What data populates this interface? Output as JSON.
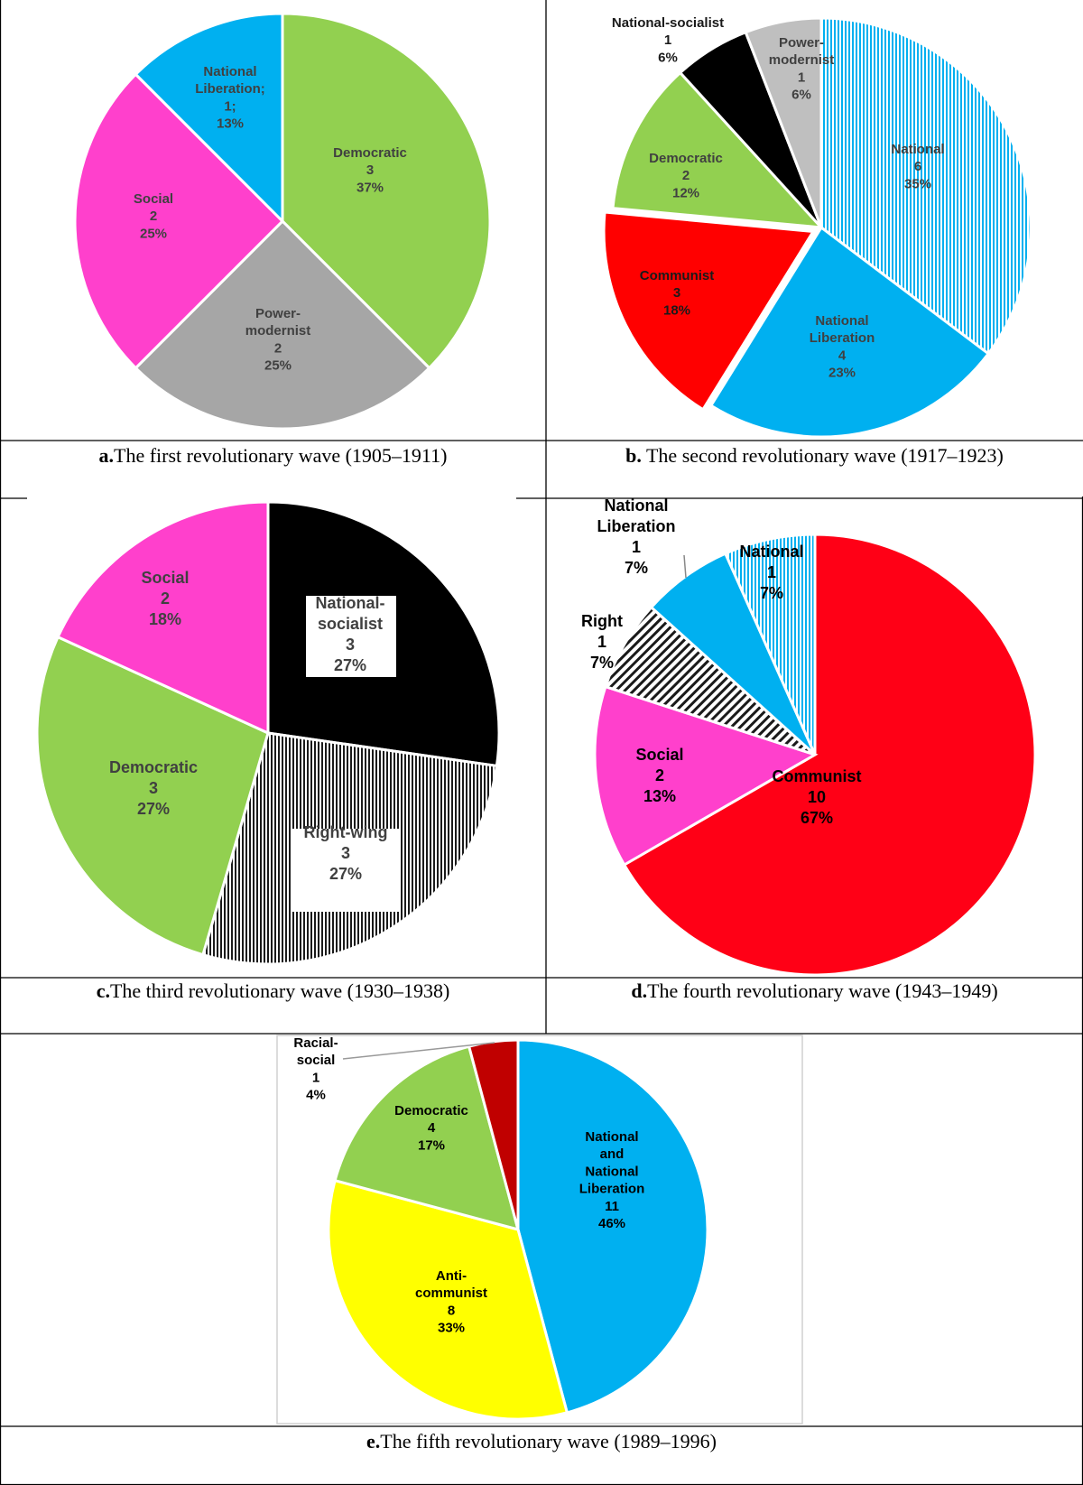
{
  "charts": [
    {
      "type": "pie",
      "caption_letter": "a.",
      "caption_text": "The first revolutionary wave (1905–1911)",
      "slices": [
        {
          "name": "Democratic",
          "value": 3,
          "percent": "37%",
          "color": "#92d050",
          "label": [
            "Democratic",
            "3",
            "37%"
          ]
        },
        {
          "name": "Power-modernist",
          "value": 2,
          "percent": "25%",
          "color": "#a6a6a6",
          "label": [
            "Power-",
            "modernist",
            "2",
            "25%"
          ]
        },
        {
          "name": "Social",
          "value": 2,
          "percent": "25%",
          "color": "#ff40cc",
          "label": [
            "Social",
            "2",
            "25%"
          ]
        },
        {
          "name": "National Liberation",
          "value": 1,
          "percent": "13%",
          "color": "#00b0f0",
          "label": [
            "National",
            "Liberation;",
            "1;",
            "13%"
          ]
        }
      ]
    },
    {
      "type": "pie",
      "caption_letter": "b.",
      "caption_text": "The second revolutionary wave (1917–1923)",
      "slices": [
        {
          "name": "National",
          "value": 6,
          "percent": "35%",
          "color": "#00b0f0",
          "pattern": "vlines",
          "label": [
            "National",
            "6",
            "35%"
          ]
        },
        {
          "name": "National Liberation",
          "value": 4,
          "percent": "23%",
          "color": "#00b0f0",
          "label": [
            "National",
            "Liberation",
            "4",
            "23%"
          ]
        },
        {
          "name": "Communist",
          "value": 3,
          "percent": "18%",
          "color": "#ff0000",
          "label": [
            "Communist",
            "3",
            "18%"
          ]
        },
        {
          "name": "Democratic",
          "value": 2,
          "percent": "12%",
          "color": "#92d050",
          "label": [
            "Democratic",
            "2",
            "12%"
          ]
        },
        {
          "name": "National-socialist",
          "value": 1,
          "percent": "6%",
          "color": "#000000",
          "label": [
            "National-socialist",
            "1",
            "6%"
          ]
        },
        {
          "name": "Power-modernist",
          "value": 1,
          "percent": "6%",
          "color": "#bfbfbf",
          "label": [
            "Power-",
            "modernist",
            "1",
            "6%"
          ]
        }
      ]
    },
    {
      "type": "pie",
      "caption_letter": "c.",
      "caption_text": "The third revolutionary wave (1930–1938)",
      "slices": [
        {
          "name": "National-socialist",
          "value": 3,
          "percent": "27%",
          "color": "#000000",
          "label": [
            "National-",
            "socialist",
            "3",
            "27%"
          ]
        },
        {
          "name": "Right-wing",
          "value": 3,
          "percent": "27%",
          "color": "#ffffff",
          "pattern": "vlines-dark",
          "label": [
            "Right-wing",
            "3",
            "27%"
          ]
        },
        {
          "name": "Democratic",
          "value": 3,
          "percent": "27%",
          "color": "#92d050",
          "label": [
            "Democratic",
            "3",
            "27%"
          ]
        },
        {
          "name": "Social",
          "value": 2,
          "percent": "18%",
          "color": "#ff40cc",
          "label": [
            "Social",
            "2",
            "18%"
          ]
        }
      ]
    },
    {
      "type": "pie",
      "caption_letter": "d.",
      "caption_text": "The fourth revolutionary wave (1943–1949)",
      "slices": [
        {
          "name": "Communist",
          "value": 10,
          "percent": "67%",
          "color": "#ff0016",
          "label": [
            "Communist",
            "10",
            "67%"
          ]
        },
        {
          "name": "Social",
          "value": 2,
          "percent": "13%",
          "color": "#ff40cc",
          "label": [
            "Social",
            "2",
            "13%"
          ]
        },
        {
          "name": "Right",
          "value": 1,
          "percent": "7%",
          "color": "#ffffff",
          "pattern": "diag",
          "label": [
            "Right",
            "1",
            "7%"
          ]
        },
        {
          "name": "National Liberation",
          "value": 1,
          "percent": "7%",
          "color": "#00b0f0",
          "label": [
            "National",
            "Liberation",
            "1",
            "7%"
          ]
        },
        {
          "name": "National",
          "value": 1,
          "percent": "7%",
          "color": "#00b0f0",
          "pattern": "vlines",
          "label": [
            "National",
            "1",
            "7%"
          ]
        }
      ]
    },
    {
      "type": "pie",
      "caption_letter": "e.",
      "caption_text": "The fifth revolutionary wave (1989–1996)",
      "slices": [
        {
          "name": "National and National Liberation",
          "value": 11,
          "percent": "46%",
          "color": "#00b0f0",
          "label": [
            "National",
            "and",
            "National",
            "Liberation",
            "11",
            "46%"
          ]
        },
        {
          "name": "Anti-communist",
          "value": 8,
          "percent": "33%",
          "color": "#ffff00",
          "label": [
            "Anti-",
            "communist",
            "8",
            "33%"
          ]
        },
        {
          "name": "Democratic",
          "value": 4,
          "percent": "17%",
          "color": "#92d050",
          "label": [
            "Democratic",
            "4",
            "17%"
          ]
        },
        {
          "name": "Racial-social",
          "value": 1,
          "percent": "4%",
          "color": "#c00000",
          "label": [
            "Racial-",
            "social",
            "1",
            "4%"
          ]
        }
      ]
    }
  ]
}
